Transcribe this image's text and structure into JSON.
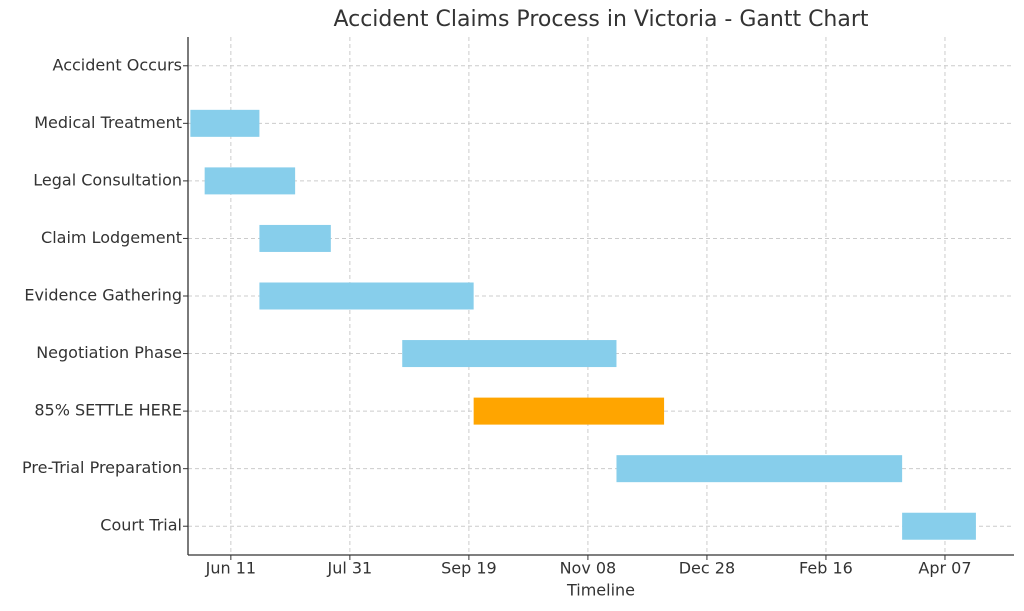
{
  "chart_data": {
    "type": "gantt",
    "title": "Accident Claims Process in Victoria - Gantt Chart",
    "x_label": "Timeline",
    "categories": [
      "Accident Occurs",
      "Medical Treatment",
      "Legal Consultation",
      "Claim Lodgement",
      "Evidence Gathering",
      "Negotiation Phase",
      "85% SETTLE HERE",
      "Pre-Trial Preparation",
      "Court Trial"
    ],
    "start": [
      -17,
      -17,
      -11,
      12,
      12,
      72,
      102,
      162,
      282
    ],
    "end": [
      -17,
      12,
      27,
      42,
      102,
      162,
      182,
      282,
      313
    ],
    "colors": [
      "#87ceeb",
      "#87ceeb",
      "#87ceeb",
      "#87ceeb",
      "#87ceeb",
      "#87ceeb",
      "#ffa500",
      "#87ceeb",
      "#87ceeb"
    ],
    "xlim": [
      -18,
      329
    ],
    "xticks": [
      {
        "value": 0,
        "label": "Jun 11"
      },
      {
        "value": 50,
        "label": "Jul 31"
      },
      {
        "value": 100,
        "label": "Sep 19"
      },
      {
        "value": 150,
        "label": "Nov 08"
      },
      {
        "value": 200,
        "label": "Dec 28"
      },
      {
        "value": 250,
        "label": "Feb 16"
      },
      {
        "value": 300,
        "label": "Apr 07"
      }
    ],
    "grid": true
  }
}
